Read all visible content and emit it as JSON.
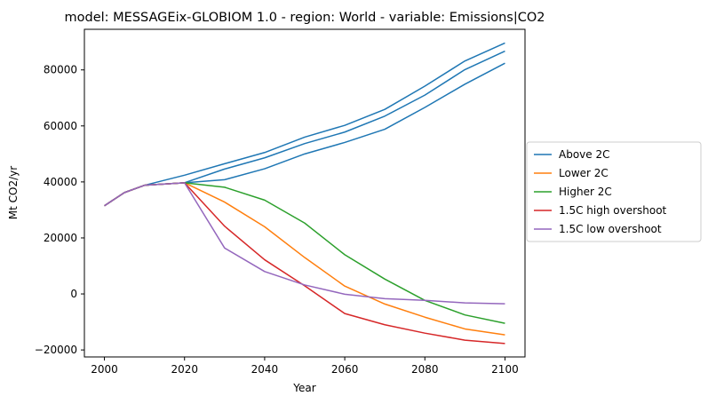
{
  "chart_data": {
    "type": "line",
    "title": "model: MESSAGEix-GLOBIOM 1.0 - region: World - variable: Emissions|CO2",
    "xlabel": "Year",
    "ylabel": "Mt CO2/yr",
    "xlim": [
      1995,
      2105
    ],
    "ylim": [
      -22500,
      94500
    ],
    "xticks": [
      2000,
      2020,
      2040,
      2060,
      2080,
      2100
    ],
    "yticks": [
      -20000,
      0,
      20000,
      40000,
      60000,
      80000
    ],
    "ytick_labels": [
      "−20000",
      "0",
      "20000",
      "40000",
      "60000",
      "80000"
    ],
    "grid": false,
    "legend_position": "outside-right",
    "x": [
      2000,
      2005,
      2010,
      2020,
      2030,
      2040,
      2050,
      2060,
      2070,
      2080,
      2090,
      2100
    ],
    "series": [
      {
        "name": "Above 2C",
        "color": "#1f77b4",
        "values": [
          31500,
          36200,
          38800,
          42400,
          46500,
          50500,
          56000,
          60200,
          65900,
          74200,
          83200,
          89600
        ]
      },
      {
        "name": "",
        "color": "#1f77b4",
        "values": [
          31500,
          36200,
          38800,
          39700,
          44600,
          48600,
          53700,
          57800,
          63500,
          71000,
          80100,
          86700
        ]
      },
      {
        "name": "",
        "color": "#1f77b4",
        "values": [
          31500,
          36200,
          38800,
          39700,
          40800,
          44700,
          50000,
          54100,
          58800,
          66600,
          74900,
          82400
        ]
      },
      {
        "name": "Lower 2C",
        "color": "#ff7f0e",
        "values": [
          31500,
          36200,
          38800,
          39700,
          32800,
          24000,
          13000,
          2800,
          -3600,
          -8300,
          -12500,
          -14600
        ]
      },
      {
        "name": "Higher 2C",
        "color": "#2ca02c",
        "values": [
          31500,
          36200,
          38800,
          39700,
          38100,
          33500,
          25300,
          14000,
          5300,
          -2300,
          -7500,
          -10500
        ]
      },
      {
        "name": "1.5C high overshoot",
        "color": "#d62728",
        "values": [
          31500,
          36200,
          38800,
          39700,
          24200,
          12200,
          2900,
          -7000,
          -11000,
          -14000,
          -16500,
          -17700
        ]
      },
      {
        "name": "1.5C low overshoot",
        "color": "#9467bd",
        "values": [
          31500,
          36200,
          38800,
          39700,
          16400,
          8000,
          3200,
          -100,
          -1700,
          -2300,
          -3200,
          -3500
        ]
      }
    ]
  }
}
